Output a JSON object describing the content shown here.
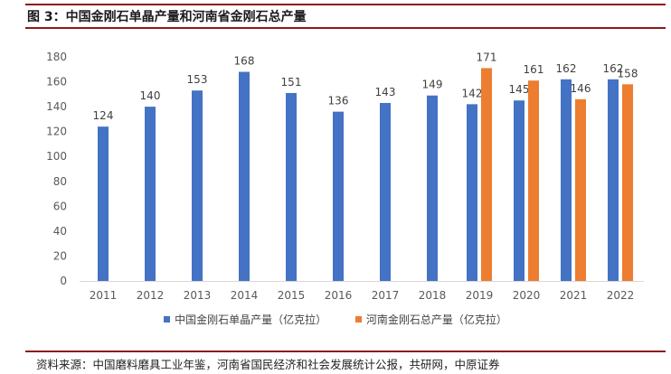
{
  "figure": {
    "title": "图 3：中国金刚石单晶产量和河南省金刚石总产量"
  },
  "chart_data": {
    "type": "bar",
    "categories": [
      "2011",
      "2012",
      "2013",
      "2014",
      "2015",
      "2016",
      "2017",
      "2018",
      "2019",
      "2020",
      "2021",
      "2022"
    ],
    "series": [
      {
        "name": "中国金刚石单晶产量（亿克拉）",
        "color": "#4472c4",
        "values": [
          124,
          140,
          153,
          168,
          151,
          136,
          143,
          149,
          142,
          145,
          162,
          162
        ]
      },
      {
        "name": "河南金刚石总产量（亿克拉）",
        "color": "#ed7d31",
        "values": [
          null,
          null,
          null,
          null,
          null,
          null,
          null,
          null,
          171,
          161,
          146,
          158
        ]
      }
    ],
    "ylim": [
      0,
      180
    ],
    "yticks": [
      0,
      20,
      40,
      60,
      80,
      100,
      120,
      140,
      160,
      180
    ],
    "grid": false,
    "legend": "bottom",
    "data_labels": true
  },
  "source": "资料来源：中国磨料磨具工业年鉴，河南省国民经济和社会发展统计公报，共研网，中原证券"
}
